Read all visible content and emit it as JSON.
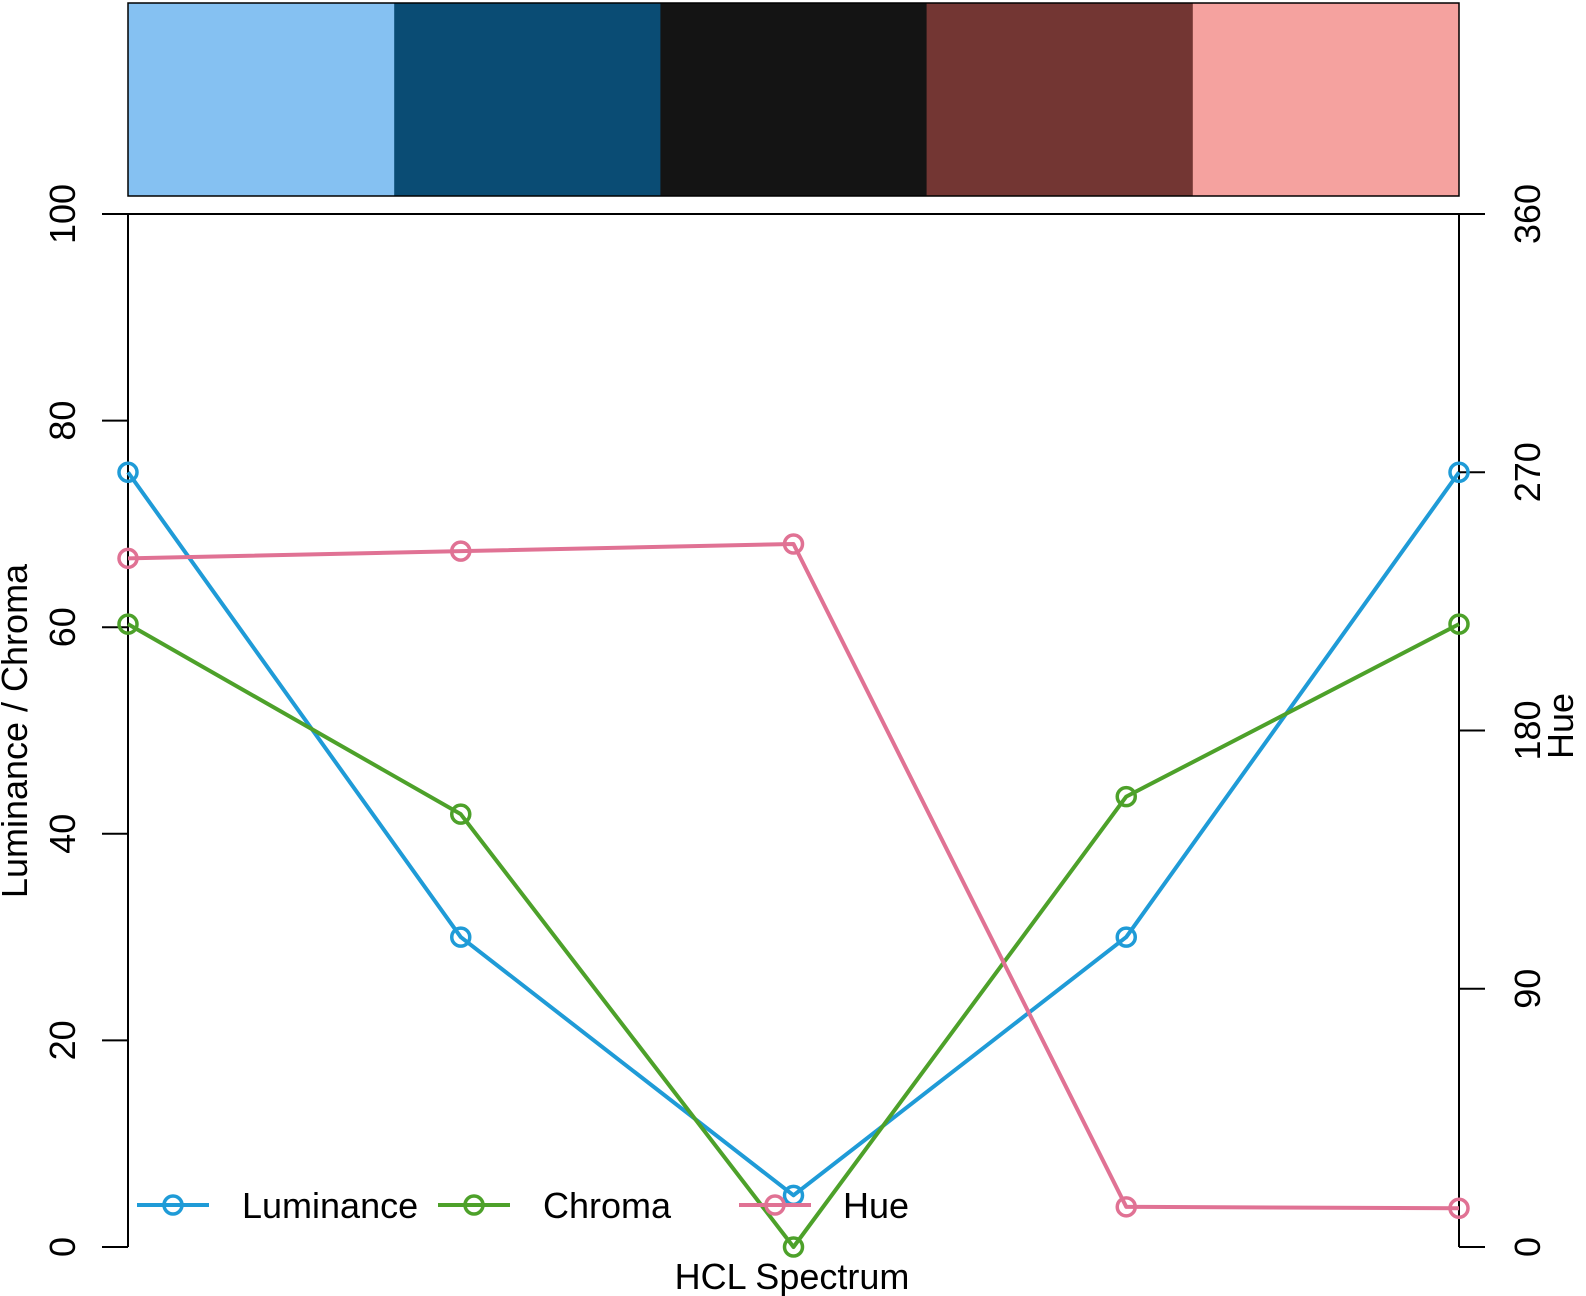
{
  "chart_data": {
    "type": "line",
    "xlabel": "HCL Spectrum",
    "ylabel_left": "Luminance / Chroma",
    "ylabel_right": "Hue",
    "ylim_left": [
      0,
      100
    ],
    "ylim_right": [
      0,
      360
    ],
    "yticks_left": [
      "0",
      "20",
      "40",
      "60",
      "80",
      "100"
    ],
    "yticks_right": [
      "0",
      "90",
      "180",
      "270",
      "360"
    ],
    "x": [
      1,
      2,
      3,
      4,
      5
    ],
    "swatches": [
      "#85C1F2",
      "#0A4C74",
      "#141414",
      "#733633",
      "#F5A29F"
    ],
    "series": [
      {
        "name": "Luminance",
        "axis": "left",
        "color": "#1F9BD7",
        "values": [
          75,
          30,
          5,
          30,
          75
        ]
      },
      {
        "name": "Chroma",
        "axis": "left",
        "color": "#4DA12A",
        "values": [
          60.3,
          41.9,
          0,
          43.6,
          60.3
        ]
      },
      {
        "name": "Hue",
        "axis": "right",
        "color": "#E07294",
        "values": [
          240,
          242.5,
          245,
          14,
          13.5
        ]
      }
    ],
    "legend_position": "bottom",
    "grid": false
  }
}
